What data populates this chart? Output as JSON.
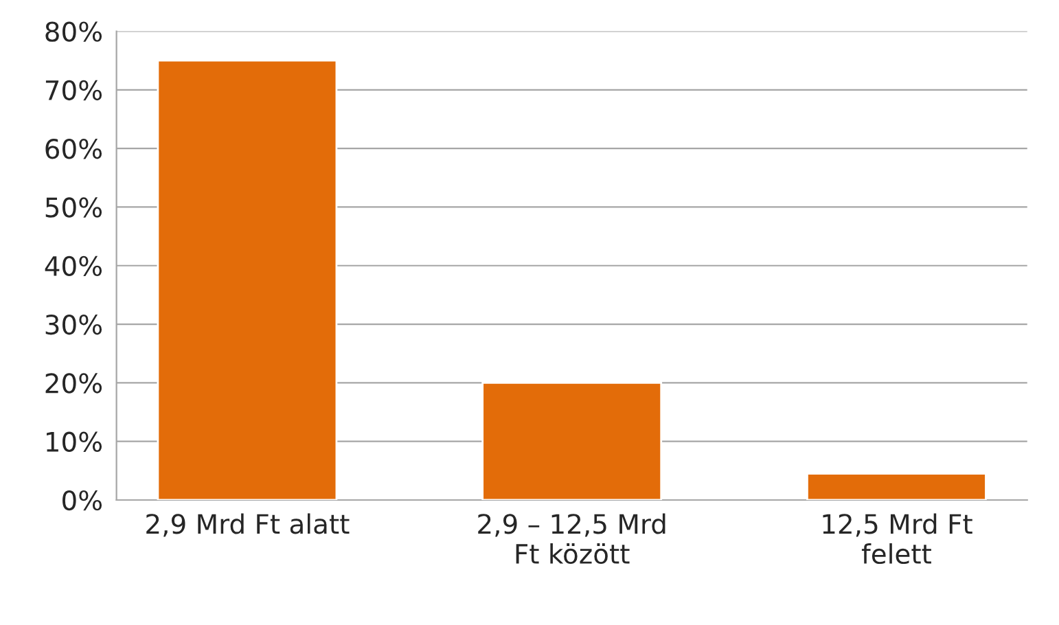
{
  "chart_data": {
    "type": "bar",
    "categories": [
      "2,9 Mrd Ft alatt",
      "2,9 – 12,5 Mrd\nFt között",
      "12,5 Mrd Ft\nfelett"
    ],
    "values": [
      75,
      20,
      4.5
    ],
    "color": "#e36c09",
    "ylim": [
      0,
      80
    ],
    "yticks": [
      {
        "value": 0,
        "label": "0%"
      },
      {
        "value": 10,
        "label": "10%"
      },
      {
        "value": 20,
        "label": "20%"
      },
      {
        "value": 30,
        "label": "30%"
      },
      {
        "value": 40,
        "label": "40%"
      },
      {
        "value": 50,
        "label": "50%"
      },
      {
        "value": 60,
        "label": "60%"
      },
      {
        "value": 70,
        "label": "70%"
      },
      {
        "value": 80,
        "label": "80%"
      }
    ],
    "grid": "y"
  }
}
